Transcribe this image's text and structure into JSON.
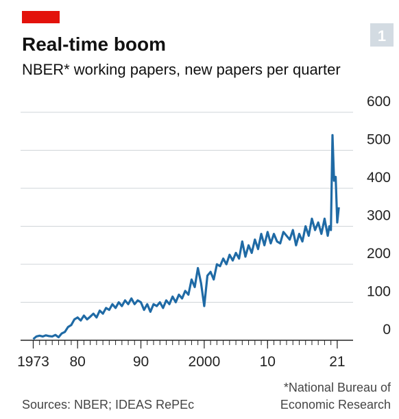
{
  "chart_data": {
    "type": "line",
    "badge": "1",
    "title": "Real-time boom",
    "subtitle": "NBER* working papers, new papers per quarter",
    "source": "Sources: NBER; IDEAS RePEc",
    "footnote": [
      "*National Bureau of",
      "Economic Research"
    ],
    "color": "#1f6aa5",
    "grid": true,
    "xlim": [
      1971,
      2023.5
    ],
    "ylim": [
      0,
      600
    ],
    "yticks": [
      0,
      100,
      200,
      300,
      400,
      500,
      600
    ],
    "xticks": [
      {
        "value": 1973,
        "label": "1973"
      },
      {
        "value": 1980,
        "label": "80"
      },
      {
        "value": 1990,
        "label": "90"
      },
      2000,
      {
        "value": 2010,
        "label": "10"
      },
      {
        "value": 2021,
        "label": "21"
      }
    ],
    "xminorticks": [
      1973,
      1974,
      1975,
      1976,
      1977,
      1978,
      1979,
      1980,
      1981,
      1982,
      1983,
      1984,
      1985,
      1986,
      1987,
      1988,
      1989,
      1990,
      1991,
      1992,
      1993,
      1994,
      1995,
      1996,
      1997,
      1998,
      1999,
      2000,
      2001,
      2002,
      2003,
      2004,
      2005,
      2006,
      2007,
      2008,
      2009,
      2010,
      2011,
      2012,
      2013,
      2014,
      2015,
      2016,
      2017,
      2018,
      2019,
      2020,
      2021
    ],
    "x": [
      1973,
      1973.5,
      1974,
      1974.5,
      1975,
      1975.5,
      1976,
      1976.5,
      1977,
      1977.5,
      1978,
      1978.5,
      1979,
      1979.5,
      1980,
      1980.5,
      1981,
      1981.5,
      1982,
      1982.5,
      1983,
      1983.5,
      1984,
      1984.5,
      1985,
      1985.5,
      1986,
      1986.5,
      1987,
      1987.5,
      1988,
      1988.5,
      1989,
      1989.5,
      1990,
      1990.5,
      1991,
      1991.5,
      1992,
      1992.5,
      1993,
      1993.5,
      1994,
      1994.5,
      1995,
      1995.5,
      1996,
      1996.5,
      1997,
      1997.5,
      1998,
      1998.5,
      1999,
      1999.5,
      2000,
      2000.5,
      2001,
      2001.5,
      2002,
      2002.5,
      2003,
      2003.5,
      2004,
      2004.5,
      2005,
      2005.5,
      2006,
      2006.5,
      2007,
      2007.5,
      2008,
      2008.5,
      2009,
      2009.5,
      2010,
      2010.5,
      2011,
      2011.5,
      2012,
      2012.5,
      2013,
      2013.5,
      2014,
      2014.5,
      2015,
      2015.5,
      2016,
      2016.5,
      2017,
      2017.5,
      2018,
      2018.5,
      2019,
      2019.5,
      2019.75,
      2020,
      2020.25,
      2020.5,
      2020.75,
      2021,
      2021.25
    ],
    "values": [
      3,
      10,
      12,
      10,
      13,
      11,
      10,
      14,
      8,
      18,
      22,
      35,
      40,
      55,
      60,
      52,
      65,
      55,
      62,
      70,
      60,
      78,
      70,
      85,
      80,
      95,
      85,
      100,
      90,
      105,
      95,
      110,
      95,
      105,
      100,
      80,
      95,
      75,
      95,
      90,
      100,
      85,
      105,
      95,
      115,
      100,
      120,
      110,
      130,
      120,
      160,
      140,
      190,
      150,
      90,
      170,
      180,
      160,
      200,
      195,
      215,
      200,
      225,
      210,
      230,
      215,
      260,
      220,
      250,
      230,
      265,
      240,
      280,
      250,
      285,
      255,
      280,
      260,
      255,
      285,
      275,
      265,
      290,
      250,
      280,
      260,
      300,
      275,
      320,
      290,
      310,
      280,
      320,
      275,
      300,
      290,
      540,
      420,
      430,
      310,
      350
    ]
  }
}
